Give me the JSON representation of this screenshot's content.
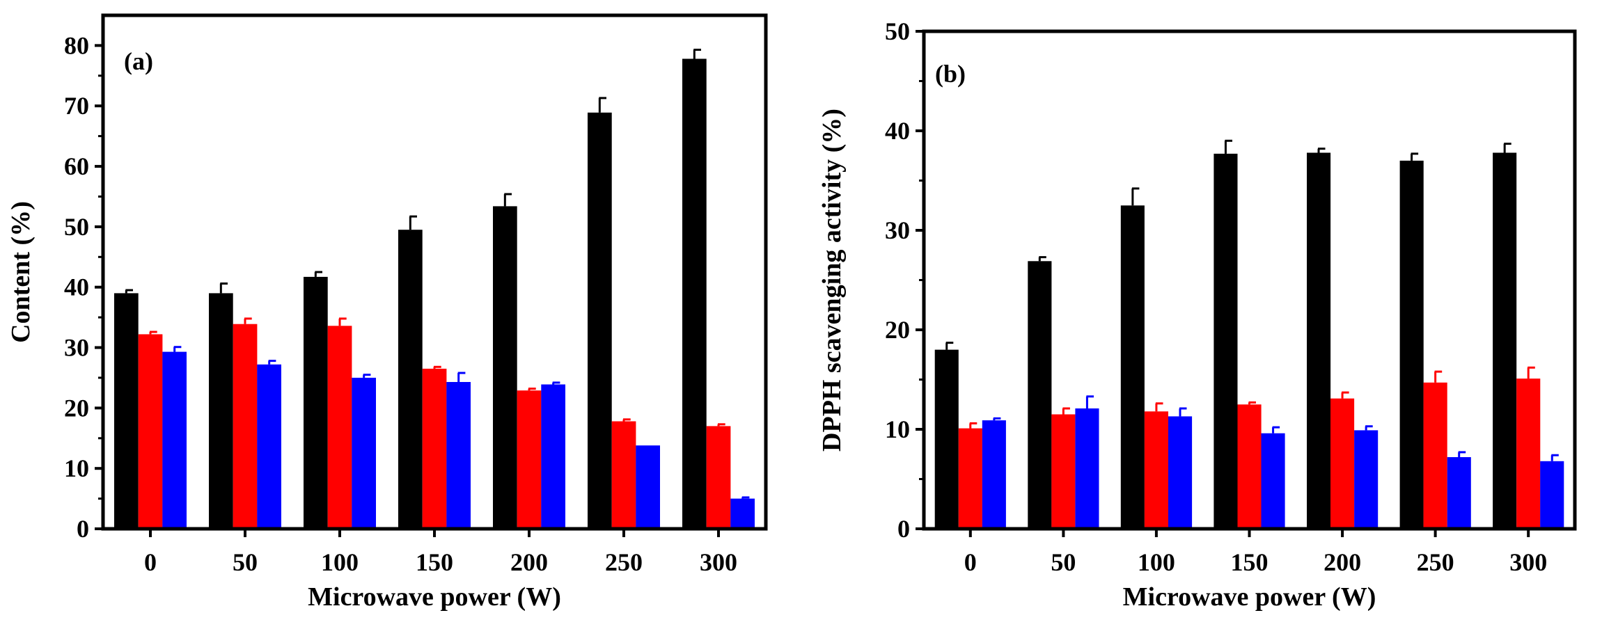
{
  "chart_data": [
    {
      "type": "bar",
      "panel_label": "(a)",
      "categories": [
        "0",
        "50",
        "100",
        "150",
        "200",
        "250",
        "300"
      ],
      "xlabel": "Microwave power (W)",
      "ylabel": "Content (%)",
      "ylim": [
        0,
        85
      ],
      "yticks": [
        "0",
        "10",
        "20",
        "30",
        "40",
        "50",
        "60",
        "70",
        "80"
      ],
      "grid": false,
      "series": [
        {
          "color": "#000000",
          "values": [
            39.0,
            39.0,
            41.7,
            49.5,
            53.4,
            68.9,
            77.8
          ],
          "errors": [
            0.5,
            1.6,
            0.8,
            2.2,
            2.0,
            2.4,
            1.5
          ]
        },
        {
          "color": "#ff0000",
          "values": [
            32.2,
            33.9,
            33.6,
            26.5,
            22.9,
            17.8,
            17.0
          ],
          "errors": [
            0.4,
            0.9,
            1.2,
            0.3,
            0.3,
            0.3,
            0.3
          ]
        },
        {
          "color": "#0000ff",
          "values": [
            29.3,
            27.2,
            25.0,
            24.3,
            23.9,
            13.8,
            5.0
          ],
          "errors": [
            0.8,
            0.6,
            0.5,
            1.5,
            0.3,
            0.0,
            0.2
          ]
        }
      ]
    },
    {
      "type": "bar",
      "panel_label": "(b)",
      "categories": [
        "0",
        "50",
        "100",
        "150",
        "200",
        "250",
        "300"
      ],
      "xlabel": "Microwave power (W)",
      "ylabel": "DPPH scavenging activity (%)",
      "ylim": [
        0,
        50
      ],
      "yticks": [
        "0",
        "10",
        "20",
        "30",
        "40",
        "50"
      ],
      "grid": false,
      "series": [
        {
          "color": "#000000",
          "values": [
            18.0,
            26.9,
            32.5,
            37.7,
            37.8,
            37.0,
            37.8
          ],
          "errors": [
            0.7,
            0.4,
            1.7,
            1.3,
            0.4,
            0.7,
            0.9
          ]
        },
        {
          "color": "#ff0000",
          "values": [
            10.1,
            11.5,
            11.8,
            12.5,
            13.1,
            14.7,
            15.1
          ],
          "errors": [
            0.5,
            0.6,
            0.8,
            0.2,
            0.6,
            1.1,
            1.1
          ]
        },
        {
          "color": "#0000ff",
          "values": [
            10.9,
            12.1,
            11.3,
            9.6,
            9.9,
            7.2,
            6.8
          ],
          "errors": [
            0.2,
            1.2,
            0.8,
            0.6,
            0.4,
            0.5,
            0.6
          ]
        }
      ]
    }
  ]
}
